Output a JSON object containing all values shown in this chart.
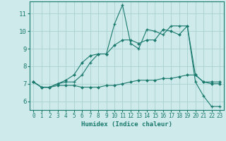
{
  "xlabel": "Humidex (Indice chaleur)",
  "bg_color": "#ceeaea",
  "line_color": "#1a7a6e",
  "grid_color": "#add4d4",
  "xlim": [
    -0.5,
    23.5
  ],
  "ylim": [
    5.5,
    11.7
  ],
  "yticks": [
    6,
    7,
    8,
    9,
    10,
    11
  ],
  "xticks": [
    0,
    1,
    2,
    3,
    4,
    5,
    6,
    7,
    8,
    9,
    10,
    11,
    12,
    13,
    14,
    15,
    16,
    17,
    18,
    19,
    20,
    21,
    22,
    23
  ],
  "line1_x": [
    0,
    1,
    2,
    3,
    4,
    5,
    6,
    7,
    8,
    9,
    10,
    11,
    12,
    13,
    14,
    15,
    16,
    17,
    18,
    19,
    20,
    21,
    22,
    23
  ],
  "line1_y": [
    7.1,
    6.8,
    6.8,
    7.0,
    7.1,
    7.1,
    7.5,
    8.2,
    8.7,
    8.7,
    10.4,
    11.5,
    9.3,
    9.0,
    10.1,
    10.0,
    9.8,
    10.3,
    10.3,
    10.3,
    7.1,
    6.3,
    5.7,
    5.7
  ],
  "line2_x": [
    0,
    1,
    2,
    3,
    4,
    5,
    6,
    7,
    8,
    9,
    10,
    11,
    12,
    13,
    14,
    15,
    16,
    17,
    18,
    19,
    20,
    21,
    22,
    23
  ],
  "line2_y": [
    7.1,
    6.8,
    6.8,
    7.0,
    7.2,
    7.5,
    8.2,
    8.6,
    8.7,
    8.7,
    9.2,
    9.5,
    9.5,
    9.3,
    9.5,
    9.5,
    10.1,
    10.0,
    9.8,
    10.3,
    7.5,
    7.1,
    7.1,
    7.1
  ],
  "line3_x": [
    0,
    1,
    2,
    3,
    4,
    5,
    6,
    7,
    8,
    9,
    10,
    11,
    12,
    13,
    14,
    15,
    16,
    17,
    18,
    19,
    20,
    21,
    22,
    23
  ],
  "line3_y": [
    7.1,
    6.8,
    6.8,
    6.9,
    6.9,
    6.9,
    6.8,
    6.8,
    6.8,
    6.9,
    6.9,
    7.0,
    7.1,
    7.2,
    7.2,
    7.2,
    7.3,
    7.3,
    7.4,
    7.5,
    7.5,
    7.1,
    7.0,
    7.0
  ]
}
